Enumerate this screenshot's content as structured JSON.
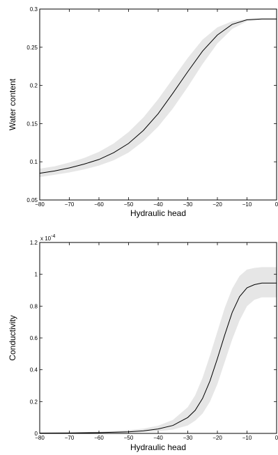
{
  "chart_data": [
    {
      "type": "line",
      "xlabel": "Hydraulic head",
      "ylabel": "Water content",
      "xlim": [
        -80,
        0
      ],
      "ylim": [
        0.05,
        0.3
      ],
      "xticks": [
        -80,
        -70,
        -60,
        -50,
        -40,
        -30,
        -20,
        -10,
        0
      ],
      "yticks": [
        0.05,
        0.1,
        0.15,
        0.2,
        0.25,
        0.3
      ],
      "xtick_labels": [
        "−80",
        "−70",
        "−60",
        "−50",
        "−40",
        "−30",
        "−20",
        "−10",
        "0"
      ],
      "ytick_labels": [
        "0.05",
        "0.1",
        "0.15",
        "0.2",
        "0.25",
        "0.3"
      ],
      "grid": false,
      "band_color": "#e6e6e6",
      "line_color": "#000000",
      "series": [
        {
          "x": [
            -80,
            -75,
            -70,
            -65,
            -60,
            -55,
            -50,
            -45,
            -40,
            -35,
            -30,
            -25,
            -20,
            -15,
            -10,
            -5,
            0
          ],
          "y": [
            0.085,
            0.088,
            0.092,
            0.097,
            0.103,
            0.112,
            0.124,
            0.141,
            0.163,
            0.19,
            0.218,
            0.245,
            0.266,
            0.28,
            0.286,
            0.287,
            0.287
          ],
          "lower": [
            0.08,
            0.083,
            0.086,
            0.09,
            0.095,
            0.102,
            0.112,
            0.127,
            0.146,
            0.17,
            0.198,
            0.228,
            0.255,
            0.274,
            0.284,
            0.286,
            0.286
          ],
          "upper": [
            0.091,
            0.094,
            0.099,
            0.105,
            0.113,
            0.124,
            0.139,
            0.158,
            0.182,
            0.209,
            0.236,
            0.26,
            0.276,
            0.284,
            0.287,
            0.288,
            0.288
          ]
        }
      ]
    },
    {
      "type": "line",
      "xlabel": "Hydraulic head",
      "ylabel": "Conductivity",
      "multiplier_base": "x 10",
      "multiplier_exp": "-4",
      "xlim": [
        -80,
        0
      ],
      "ylim": [
        0,
        1.2
      ],
      "xticks": [
        -80,
        -70,
        -60,
        -50,
        -40,
        -30,
        -20,
        -10,
        0
      ],
      "yticks": [
        0,
        0.2,
        0.4,
        0.6,
        0.8,
        1,
        1.2
      ],
      "xtick_labels": [
        "−80",
        "−70",
        "−60",
        "−50",
        "−40",
        "−30",
        "−20",
        "−10",
        "0"
      ],
      "ytick_labels": [
        "0",
        "0.2",
        "0.4",
        "0.6",
        "0.8",
        "1",
        "1.2"
      ],
      "grid": false,
      "band_color": "#e6e6e6",
      "line_color": "#000000",
      "series": [
        {
          "x": [
            -80,
            -70,
            -60,
            -50,
            -45,
            -40,
            -35,
            -30,
            -27.5,
            -25,
            -22.5,
            -20,
            -17.5,
            -15,
            -12.5,
            -10,
            -7.5,
            -5,
            0
          ],
          "y": [
            0.002,
            0.003,
            0.005,
            0.01,
            0.016,
            0.028,
            0.05,
            0.1,
            0.145,
            0.22,
            0.33,
            0.47,
            0.62,
            0.76,
            0.86,
            0.915,
            0.935,
            0.945,
            0.945
          ],
          "lower": [
            0.001,
            0.002,
            0.003,
            0.005,
            0.008,
            0.013,
            0.024,
            0.05,
            0.08,
            0.125,
            0.2,
            0.31,
            0.45,
            0.59,
            0.71,
            0.8,
            0.84,
            0.855,
            0.855
          ],
          "upper": [
            0.004,
            0.006,
            0.01,
            0.02,
            0.03,
            0.048,
            0.085,
            0.165,
            0.24,
            0.35,
            0.49,
            0.64,
            0.79,
            0.91,
            0.99,
            1.03,
            1.04,
            1.045,
            1.045
          ]
        }
      ]
    }
  ]
}
